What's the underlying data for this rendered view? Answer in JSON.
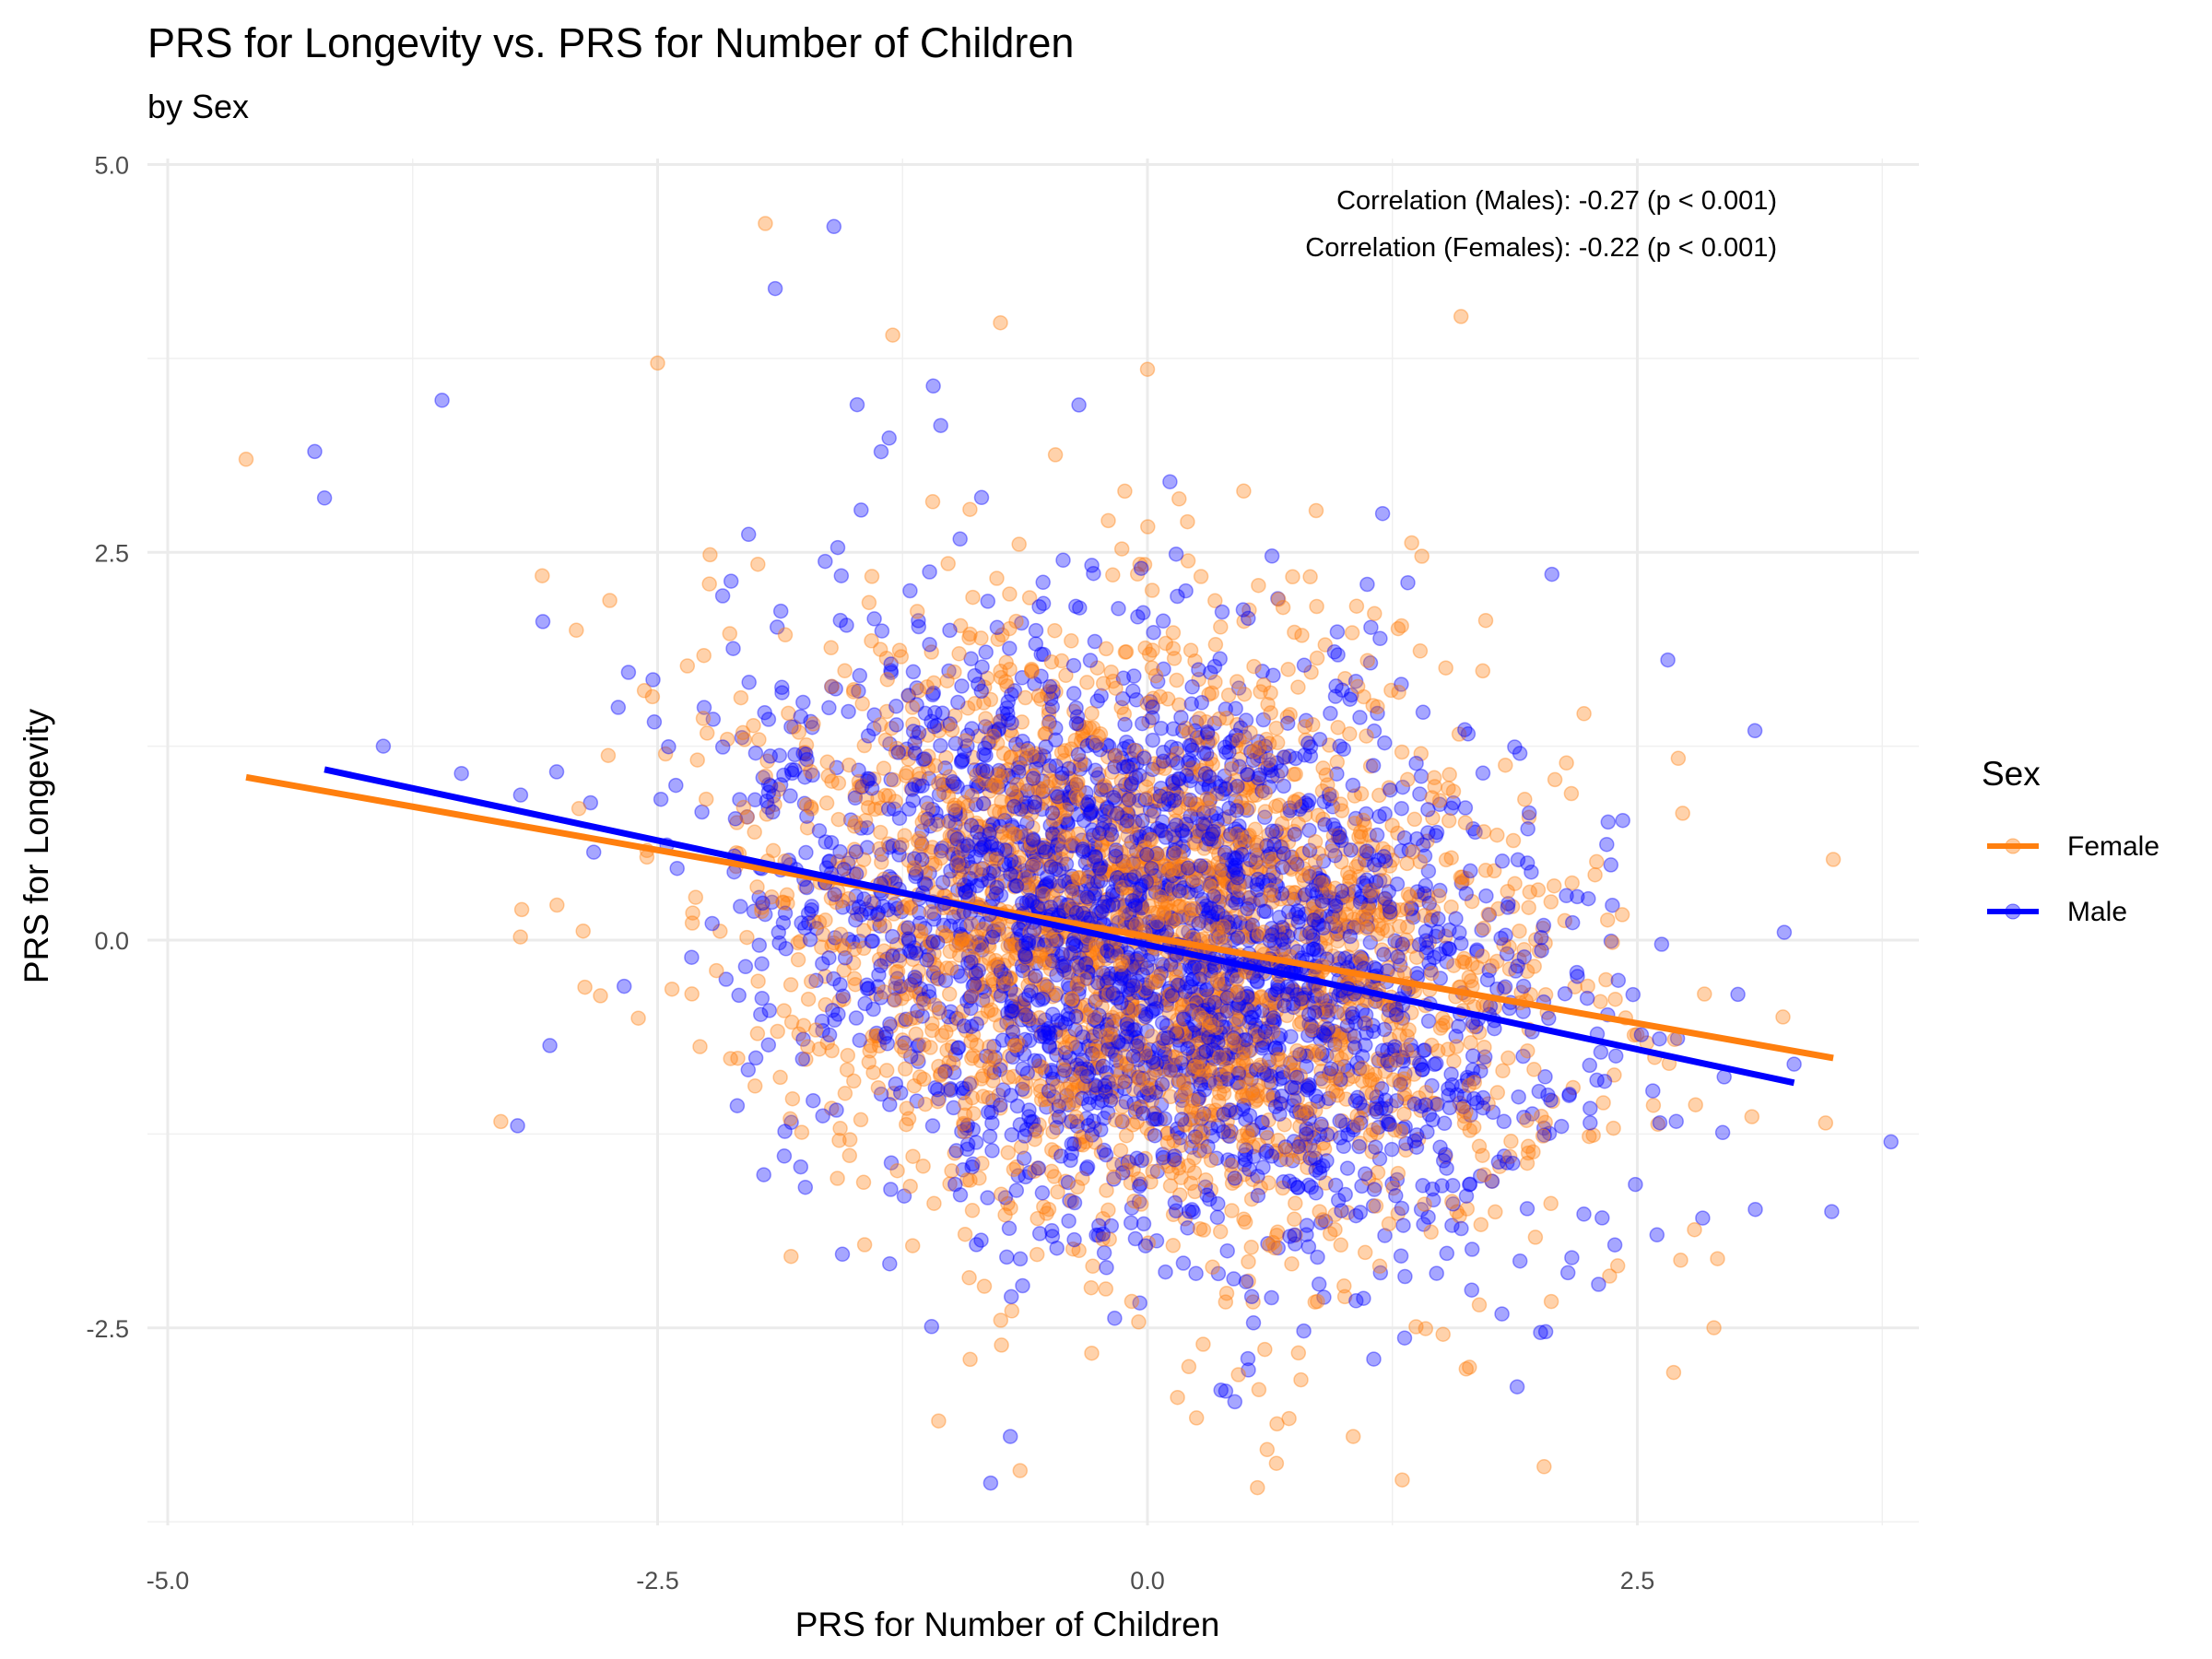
{
  "chart_data": {
    "type": "scatter",
    "title": "PRS for Longevity vs. PRS for Number of Children",
    "subtitle": "by Sex",
    "xlabel": "PRS for Number of Children",
    "ylabel": "PRS for Longevity",
    "xlim": [
      -5.0,
      3.8
    ],
    "ylim": [
      -3.75,
      5.0
    ],
    "x_ticks": [
      "-5.0",
      "-2.5",
      "0.0",
      "2.5"
    ],
    "x_tick_values": [
      -5.0,
      -2.5,
      0.0,
      2.5
    ],
    "y_ticks": [
      "5.0",
      "2.5",
      "0.0",
      "-2.5"
    ],
    "y_tick_values": [
      5.0,
      2.5,
      0.0,
      -2.5
    ],
    "grid": true,
    "legend": {
      "title": "Sex",
      "position": "right",
      "entries": [
        {
          "label": "Female",
          "color": "#ff7f0e"
        },
        {
          "label": "Male",
          "color": "#0000ff"
        }
      ]
    },
    "annotations": [
      "Correlation (Males): -0.27 (p < 0.001)",
      "Correlation (Females): -0.22 (p < 0.001)"
    ],
    "series": [
      {
        "name": "Female",
        "color": "#ff7f0e",
        "point_alpha": 0.35,
        "n_points": 2600,
        "approx_distribution": {
          "x_mean": 0.0,
          "x_sd": 1.0,
          "y_mean": 0.0,
          "y_sd": 1.0,
          "correlation": -0.22
        },
        "fit_line": {
          "x": [
            -4.6,
            3.5
          ],
          "y": [
            1.05,
            -0.76
          ]
        },
        "sample_points": [
          [
            -4.6,
            3.1
          ],
          [
            -3.3,
            -1.17
          ],
          [
            -3.2,
            0.02
          ],
          [
            -2.5,
            3.72
          ],
          [
            0.0,
            3.68
          ],
          [
            0.25,
            -3.08
          ],
          [
            1.05,
            -3.2
          ],
          [
            1.3,
            -3.48
          ],
          [
            -0.65,
            -3.42
          ],
          [
            1.6,
            4.02
          ],
          [
            3.5,
            0.52
          ],
          [
            2.4,
            -2.1
          ],
          [
            -1.3,
            3.9
          ],
          [
            -1.95,
            4.62
          ],
          [
            -0.75,
            3.98
          ]
        ]
      },
      {
        "name": "Male",
        "color": "#0000ff",
        "point_alpha": 0.35,
        "n_points": 2600,
        "approx_distribution": {
          "x_mean": 0.0,
          "x_sd": 1.0,
          "y_mean": 0.0,
          "y_sd": 1.0,
          "correlation": -0.27
        },
        "fit_line": {
          "x": [
            -4.2,
            3.3
          ],
          "y": [
            1.1,
            -0.92
          ]
        },
        "sample_points": [
          [
            -4.25,
            3.15
          ],
          [
            -4.2,
            2.85
          ],
          [
            -3.9,
            1.25
          ],
          [
            -3.6,
            3.48
          ],
          [
            -3.05,
            -0.68
          ],
          [
            -1.6,
            4.6
          ],
          [
            -0.8,
            -3.5
          ],
          [
            -0.7,
            -3.2
          ],
          [
            1.2,
            2.75
          ],
          [
            2.6,
            -1.9
          ],
          [
            3.1,
            1.35
          ],
          [
            3.25,
            0.05
          ],
          [
            3.3,
            -0.8
          ],
          [
            -1.9,
            4.2
          ],
          [
            -0.35,
            3.45
          ]
        ]
      }
    ]
  }
}
